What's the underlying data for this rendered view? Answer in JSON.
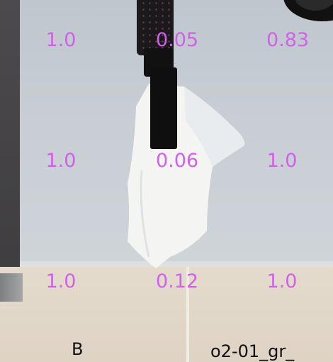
{
  "grid_values": [
    [
      "1.0",
      "0.05",
      "0.83"
    ],
    [
      "1.0",
      "0.06",
      "1.0"
    ],
    [
      "1.0",
      "0.12",
      "1.0"
    ]
  ],
  "corner_labels": {
    "left": "B",
    "right": "o2-01_gr_"
  },
  "colors": {
    "grid_label": "#d061e8",
    "corner_label": "#111111",
    "table": "#c7cdd3",
    "board": "#e0d6c8",
    "cloth": "#f4f4f2",
    "gripper": "#141414"
  }
}
